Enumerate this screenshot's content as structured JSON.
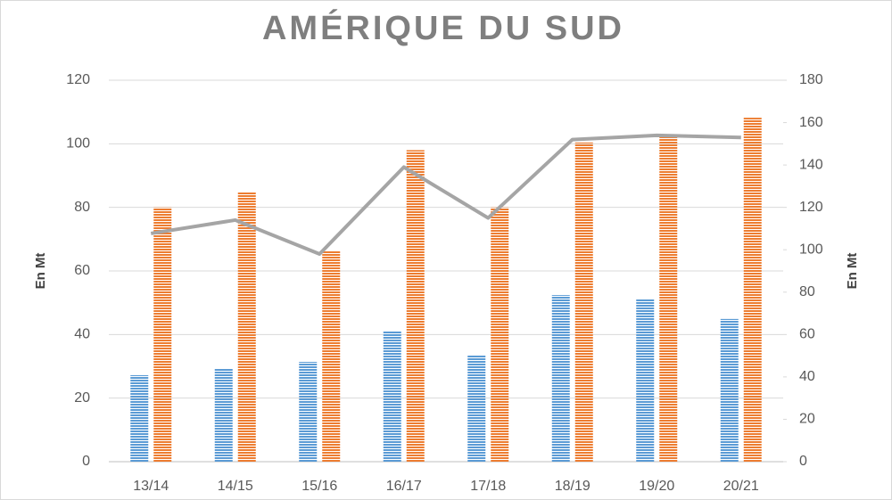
{
  "chart_data": {
    "type": "bar",
    "title": "AMÉRIQUE DU SUD",
    "y_label": "En Mt",
    "y2_label": "En Mt",
    "categories": [
      "13/14",
      "14/15",
      "15/16",
      "16/17",
      "17/18",
      "18/19",
      "19/20",
      "20/21"
    ],
    "series": [
      {
        "type": "bar",
        "color": "#5b9bd5",
        "values": [
          27.2,
          29.4,
          31.4,
          41,
          33.6,
          52.4,
          51.3,
          44.9
        ]
      },
      {
        "type": "bar",
        "color": "#ed7d31",
        "values": [
          80,
          84.7,
          66.4,
          98,
          80,
          100.4,
          102.3,
          108.2
        ]
      },
      {
        "type": "line",
        "axis": "y2",
        "color": "#a5a5a5",
        "values": [
          107.7,
          114,
          98,
          139,
          115,
          152,
          154,
          153
        ]
      }
    ],
    "ylim": [
      0,
      120
    ],
    "yticks": [
      0,
      20,
      40,
      60,
      80,
      100,
      120
    ],
    "y2lim": [
      0,
      180
    ],
    "y2ticks": [
      0,
      20,
      40,
      60,
      80,
      100,
      120,
      140,
      160,
      180
    ],
    "grid": true,
    "bar_pattern": "stripes"
  }
}
